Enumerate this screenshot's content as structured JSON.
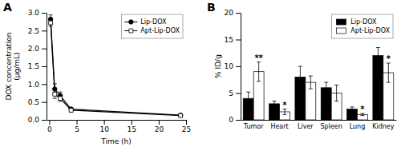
{
  "chart_data": [
    {
      "type": "line",
      "title": "A",
      "xlabel": "Time (h)",
      "ylabel": "DOX concentration\n(μg/mL)",
      "x": [
        0.25,
        1,
        2,
        4,
        24
      ],
      "series": [
        {
          "name": "Lip-DOX",
          "color": "#000000",
          "marker": "circle",
          "values": [
            2.82,
            0.86,
            0.68,
            0.3,
            0.13
          ],
          "errors": [
            0.12,
            0.15,
            0.1,
            0.05,
            0.03
          ]
        },
        {
          "name": "Apt-Lip-DOX",
          "color": "#000000",
          "marker": "open-square",
          "values": [
            2.72,
            0.72,
            0.6,
            0.27,
            0.12
          ],
          "errors": [
            0.1,
            0.12,
            0.08,
            0.05,
            0.02
          ]
        }
      ],
      "xlim": [
        -0.5,
        25
      ],
      "xticks": [
        0,
        5,
        10,
        15,
        20,
        25
      ],
      "ylim": [
        0,
        3.0
      ],
      "yticks": [
        {
          "value": 0,
          "label": "0.0"
        },
        0.5,
        {
          "value": 1,
          "label": "1.0"
        },
        1.5,
        {
          "value": 2,
          "label": "2.0"
        },
        2.5,
        {
          "value": 3,
          "label": "3.0"
        }
      ],
      "legend": "upper right"
    },
    {
      "type": "bar",
      "title": "B",
      "ylabel": "% ID/g",
      "categories": [
        "Tumor",
        "Heart",
        "Liver",
        "Spleen",
        "Lung",
        "Kidney"
      ],
      "series": [
        {
          "name": "Lip-DOX",
          "color": "#000000",
          "values": [
            4.0,
            3.0,
            8.0,
            6.0,
            2.0,
            12.0
          ],
          "errors": [
            1.2,
            0.5,
            2.0,
            1.0,
            0.4,
            1.5
          ]
        },
        {
          "name": "Apt-Lip-DOX",
          "color": "#ffffff",
          "values": [
            9.0,
            1.5,
            7.0,
            5.0,
            1.0,
            8.8
          ],
          "errors": [
            1.8,
            0.5,
            1.2,
            1.5,
            0.2,
            1.8
          ]
        }
      ],
      "ylim": [
        0,
        20
      ],
      "yticks": [
        0,
        5,
        10,
        15,
        20
      ],
      "annotations": [
        {
          "category": "Tumor",
          "text": "**"
        },
        {
          "category": "Heart",
          "text": "*"
        },
        {
          "category": "Lung",
          "text": "*"
        },
        {
          "category": "Kidney",
          "text": "*"
        }
      ],
      "legend": "upper right"
    }
  ]
}
